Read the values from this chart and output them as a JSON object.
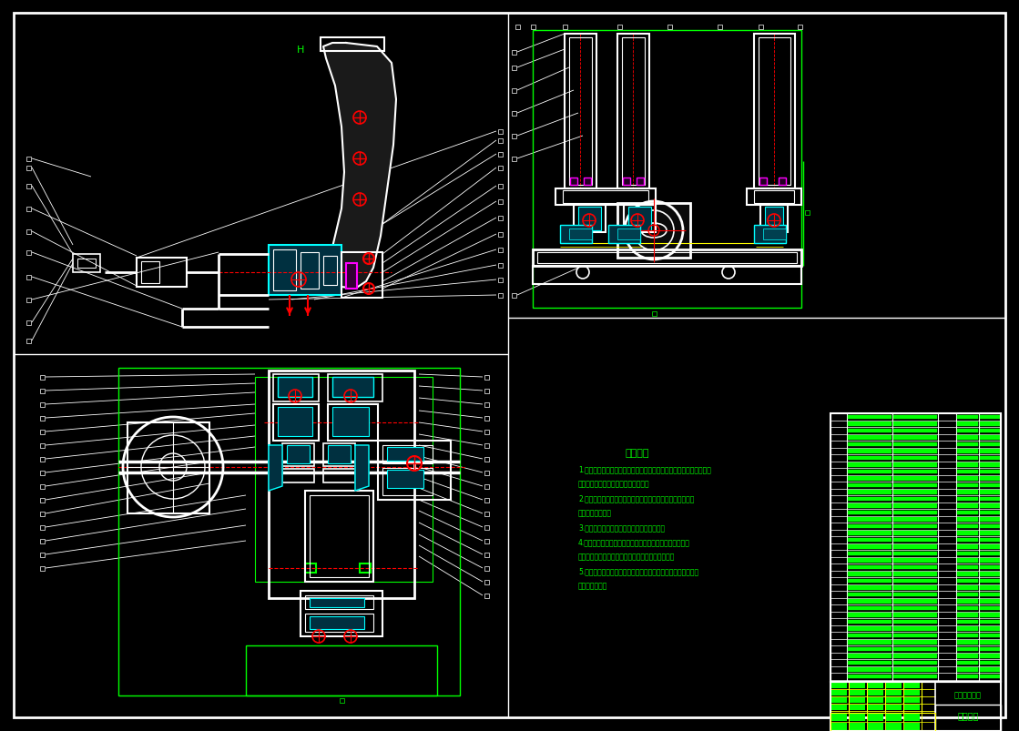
{
  "bg_color": "#000000",
  "white": "#ffffff",
  "green": "#00ff00",
  "red": "#ff0000",
  "cyan": "#00ffff",
  "yellow": "#ffff00",
  "magenta": "#ff00ff",
  "title_text": "技术要求",
  "university": "湖南科技大学",
  "drawing_title": "制动踩板",
  "tech_lines": [
    "1.零件加工完成后必须清洗干净内外表面，不得有毛刺、飞边、屑刺、",
    "锐角、倒棱、倒圆、渗漏等缺陷存在。",
    "2.密封元件安装前必须检查尺寸，实测达到图纸尺寸不超差要",
    "求才能装配上模。",
    "3.密封元件不得有渗漏现象，否则重新检测。",
    "4.安装密封圈元件，严禁打流应用不合要求的备教密封元件",
    "且安装后测试，进行轿封、结封元件已装不可拆卸。",
    "5.在打开力流需要用力元件，必须采用力扁手，不能用打开力流",
    "打开力流元件。"
  ]
}
